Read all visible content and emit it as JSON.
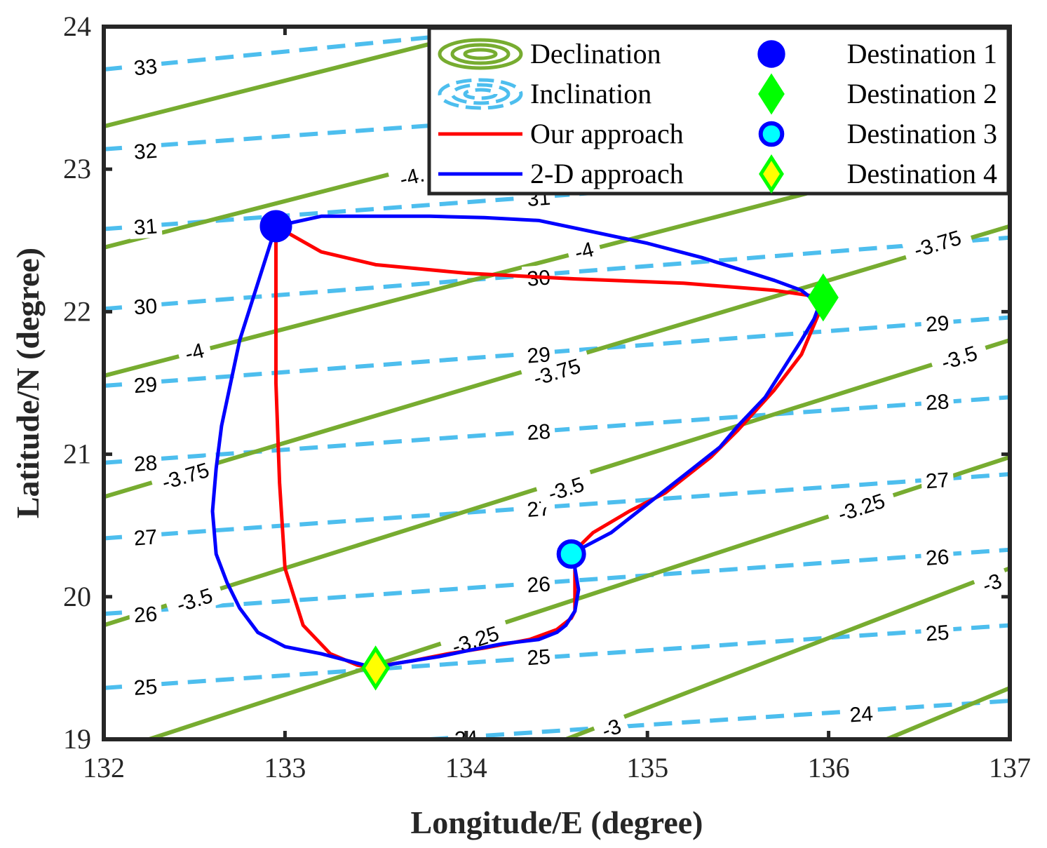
{
  "chart_data": {
    "type": "line",
    "xlabel": "Longitude/E (degree)",
    "ylabel": "Latitude/N (degree)",
    "xlim": [
      132,
      137
    ],
    "ylim": [
      19,
      24
    ],
    "xticks": [
      "132",
      "133",
      "134",
      "135",
      "136",
      "137"
    ],
    "yticks": [
      "19",
      "20",
      "21",
      "22",
      "23",
      "24"
    ],
    "grid": false,
    "legend_position": "top-right",
    "legend": [
      {
        "name": "Declination",
        "style": "solid",
        "color": "#77AC30"
      },
      {
        "name": "Inclination",
        "style": "dashed",
        "color": "#4DBEEE"
      },
      {
        "name": "Our approach",
        "style": "solid",
        "color": "#FF0000"
      },
      {
        "name": "2-D approach",
        "style": "solid",
        "color": "#0000FF"
      },
      {
        "name": "Destination 1",
        "marker": "circle",
        "color": "#0000FF"
      },
      {
        "name": "Destination 2",
        "marker": "diamond",
        "color": "#00FF00"
      },
      {
        "name": "Destination 3",
        "marker": "circle",
        "color": "#00FFFF"
      },
      {
        "name": "Destination 4",
        "marker": "diamond",
        "color": "#FFFF00"
      }
    ],
    "destinations": [
      {
        "name": "Destination 1",
        "x": 132.95,
        "y": 22.6
      },
      {
        "name": "Destination 2",
        "x": 135.97,
        "y": 22.1
      },
      {
        "name": "Destination 3",
        "x": 134.58,
        "y": 20.3
      },
      {
        "name": "Destination 4",
        "x": 133.5,
        "y": 19.5
      }
    ],
    "declination_contours": [
      {
        "level": "-4.",
        "points": [
          [
            132,
            23.3
          ],
          [
            134.8,
            24.2
          ]
        ],
        "labels": [
          {
            "text": "-4.",
            "x": 133.9,
            "y": 23.78
          }
        ]
      },
      {
        "level": "-4.",
        "points": [
          [
            132,
            22.45
          ],
          [
            136.45,
            23.9
          ]
        ],
        "labels": [
          {
            "text": "-4.",
            "x": 133.7,
            "y": 22.95
          }
        ]
      },
      {
        "level": "-4",
        "points": [
          [
            132,
            21.55
          ],
          [
            137,
            23.2
          ]
        ],
        "labels": [
          {
            "text": "-4",
            "x": 132.5,
            "y": 21.72
          },
          {
            "text": "-4",
            "x": 134.65,
            "y": 22.43
          }
        ]
      },
      {
        "level": "-3.75",
        "points": [
          [
            132,
            20.7
          ],
          [
            137,
            22.6
          ]
        ],
        "labels": [
          {
            "text": "-3.75",
            "x": 132.45,
            "y": 20.85
          },
          {
            "text": "-3.75",
            "x": 134.5,
            "y": 21.58
          },
          {
            "text": "-3.75",
            "x": 136.6,
            "y": 22.48
          }
        ]
      },
      {
        "level": "-3.5",
        "points": [
          [
            132,
            19.8
          ],
          [
            137,
            21.8
          ]
        ],
        "labels": [
          {
            "text": "-3.5",
            "x": 132.5,
            "y": 19.98
          },
          {
            "text": "-3.5",
            "x": 134.55,
            "y": 20.76
          },
          {
            "text": "-3.5",
            "x": 136.72,
            "y": 21.68
          }
        ]
      },
      {
        "level": "-3.25",
        "points": [
          [
            132.25,
            19
          ],
          [
            137,
            20.98
          ]
        ],
        "labels": [
          {
            "text": "-3.25",
            "x": 134.05,
            "y": 19.7
          },
          {
            "text": "-3.25",
            "x": 136.18,
            "y": 20.63
          }
        ]
      },
      {
        "level": "-3",
        "points": [
          [
            134.55,
            19
          ],
          [
            137,
            20.2
          ]
        ],
        "labels": [
          {
            "text": "-3",
            "x": 134.8,
            "y": 19.08
          },
          {
            "text": "-3",
            "x": 136.9,
            "y": 20.1
          }
        ]
      },
      {
        "level": "",
        "points": [
          [
            136.32,
            19
          ],
          [
            137,
            19.36
          ]
        ],
        "labels": []
      }
    ],
    "inclination_contours": [
      {
        "level": "33",
        "points": [
          [
            132,
            23.7
          ],
          [
            136,
            24.2
          ]
        ],
        "labels": [
          {
            "text": "33",
            "x": 132.23,
            "y": 23.72
          }
        ]
      },
      {
        "level": "32",
        "points": [
          [
            132,
            23.14
          ],
          [
            137,
            23.6
          ]
        ],
        "labels": [
          {
            "text": "32",
            "x": 132.23,
            "y": 23.13
          }
        ]
      },
      {
        "level": "31",
        "points": [
          [
            132,
            22.58
          ],
          [
            137,
            23.05
          ]
        ],
        "labels": [
          {
            "text": "31",
            "x": 132.23,
            "y": 22.6
          },
          {
            "text": "31",
            "x": 134.4,
            "y": 22.8
          }
        ]
      },
      {
        "level": "30",
        "points": [
          [
            132,
            22.02
          ],
          [
            137,
            22.52
          ]
        ],
        "labels": [
          {
            "text": "30",
            "x": 132.23,
            "y": 22.04
          },
          {
            "text": "30",
            "x": 134.4,
            "y": 22.24
          },
          {
            "text": "30",
            "x": 136.62,
            "y": 22.48
          }
        ]
      },
      {
        "level": "29",
        "points": [
          [
            132,
            21.48
          ],
          [
            137,
            21.96
          ]
        ],
        "labels": [
          {
            "text": "29",
            "x": 132.23,
            "y": 21.49
          },
          {
            "text": "29",
            "x": 134.4,
            "y": 21.7
          },
          {
            "text": "29",
            "x": 136.6,
            "y": 21.92
          }
        ]
      },
      {
        "level": "28",
        "points": [
          [
            132,
            20.94
          ],
          [
            137,
            21.4
          ]
        ],
        "labels": [
          {
            "text": "28",
            "x": 132.23,
            "y": 20.94
          },
          {
            "text": "28",
            "x": 134.4,
            "y": 21.16
          },
          {
            "text": "28",
            "x": 136.6,
            "y": 21.37
          }
        ]
      },
      {
        "level": "27",
        "points": [
          [
            132,
            20.41
          ],
          [
            137,
            20.86
          ]
        ],
        "labels": [
          {
            "text": "27",
            "x": 132.23,
            "y": 20.42
          },
          {
            "text": "27",
            "x": 134.4,
            "y": 20.62
          },
          {
            "text": "27",
            "x": 136.6,
            "y": 20.82
          }
        ]
      },
      {
        "level": "26",
        "points": [
          [
            132,
            19.88
          ],
          [
            137,
            20.33
          ]
        ],
        "labels": [
          {
            "text": "26",
            "x": 132.23,
            "y": 19.88
          },
          {
            "text": "26",
            "x": 134.4,
            "y": 20.09
          },
          {
            "text": "26",
            "x": 136.6,
            "y": 20.28
          }
        ]
      },
      {
        "level": "25",
        "points": [
          [
            132,
            19.36
          ],
          [
            137,
            19.8
          ]
        ],
        "labels": [
          {
            "text": "25",
            "x": 132.23,
            "y": 19.37
          },
          {
            "text": "25",
            "x": 134.4,
            "y": 19.58
          },
          {
            "text": "25",
            "x": 136.6,
            "y": 19.75
          }
        ]
      },
      {
        "level": "24",
        "points": [
          [
            133.8,
            19.0
          ],
          [
            137,
            19.27
          ]
        ],
        "labels": [
          {
            "text": "24",
            "x": 136.18,
            "y": 19.18
          },
          {
            "text": "24",
            "x": 134.0,
            "y": 19.01
          }
        ]
      }
    ],
    "series": [
      {
        "name": "Our approach",
        "color": "#FF0000",
        "x": [
          132.95,
          133.2,
          133.5,
          134.0,
          134.6,
          135.2,
          135.7,
          135.97,
          135.95,
          135.9,
          135.85,
          135.7,
          135.5,
          135.35,
          135.1,
          134.9,
          134.7,
          134.58,
          134.6,
          134.6,
          134.6,
          134.58,
          134.5,
          134.35,
          134.1,
          133.9,
          133.7,
          133.55,
          133.5,
          133.4,
          133.25,
          133.1,
          133.0,
          132.97,
          132.95,
          132.95,
          132.95
        ],
        "y": [
          22.6,
          22.42,
          22.33,
          22.27,
          22.23,
          22.2,
          22.15,
          22.1,
          22.0,
          21.85,
          21.7,
          21.45,
          21.17,
          20.98,
          20.73,
          20.6,
          20.45,
          20.3,
          20.2,
          20.0,
          19.9,
          19.85,
          19.77,
          19.7,
          19.64,
          19.6,
          19.55,
          19.52,
          19.5,
          19.52,
          19.6,
          19.8,
          20.2,
          20.8,
          21.5,
          22.1,
          22.6
        ]
      },
      {
        "name": "2-D approach",
        "color": "#0000FF",
        "x": [
          132.95,
          133.2,
          133.5,
          133.8,
          134.1,
          134.4,
          134.7,
          135.0,
          135.3,
          135.5,
          135.7,
          135.85,
          135.95,
          135.92,
          135.85,
          135.75,
          135.65,
          135.5,
          135.4,
          135.25,
          135.1,
          134.95,
          134.8,
          134.65,
          134.58,
          134.6,
          134.62,
          134.6,
          134.55,
          134.5,
          134.4,
          134.2,
          134.0,
          133.85,
          133.75,
          133.7,
          133.65,
          133.6,
          133.5,
          133.35,
          133.2,
          133.0,
          132.85,
          132.75,
          132.68,
          132.62,
          132.6,
          132.62,
          132.65,
          132.7,
          132.75,
          132.8,
          132.85,
          132.9,
          132.95
        ],
        "y": [
          22.6,
          22.67,
          22.67,
          22.67,
          22.66,
          22.64,
          22.56,
          22.48,
          22.38,
          22.3,
          22.22,
          22.15,
          22.05,
          21.95,
          21.8,
          21.6,
          21.4,
          21.2,
          21.05,
          20.9,
          20.75,
          20.6,
          20.45,
          20.35,
          20.3,
          20.2,
          20.05,
          19.9,
          19.8,
          19.75,
          19.7,
          19.67,
          19.62,
          19.58,
          19.56,
          19.55,
          19.54,
          19.53,
          19.5,
          19.55,
          19.6,
          19.65,
          19.75,
          19.92,
          20.1,
          20.3,
          20.6,
          20.9,
          21.2,
          21.5,
          21.8,
          22.0,
          22.2,
          22.4,
          22.6
        ]
      }
    ]
  }
}
